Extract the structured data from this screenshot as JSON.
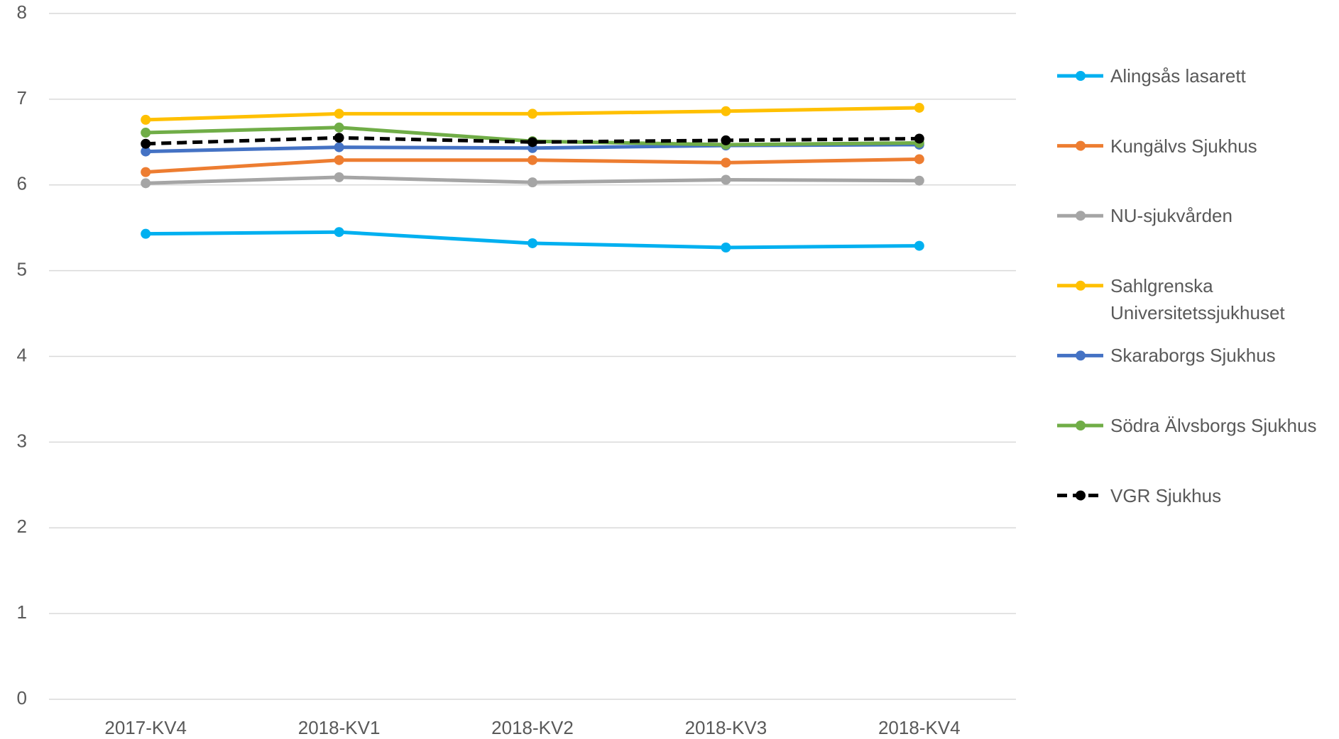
{
  "chart_data": {
    "type": "line",
    "categories": [
      "2017-KV4",
      "2018-KV1",
      "2018-KV2",
      "2018-KV3",
      "2018-KV4"
    ],
    "series": [
      {
        "name": "Alingsås lasarett",
        "color": "#00b0f0",
        "values": [
          5.43,
          5.45,
          5.32,
          5.27,
          5.29
        ]
      },
      {
        "name": "Kungälvs Sjukhus",
        "color": "#ed7d31",
        "values": [
          6.15,
          6.29,
          6.29,
          6.26,
          6.3
        ]
      },
      {
        "name": "NU-sjukvården",
        "color": "#a5a5a5",
        "values": [
          6.02,
          6.09,
          6.03,
          6.06,
          6.05
        ]
      },
      {
        "name": "Sahlgrenska Universitetssjukhuset",
        "color": "#ffc000",
        "values": [
          6.76,
          6.83,
          6.83,
          6.86,
          6.9
        ]
      },
      {
        "name": "Skaraborgs Sjukhus",
        "color": "#4472c4",
        "values": [
          6.39,
          6.44,
          6.43,
          6.46,
          6.47
        ]
      },
      {
        "name": "Södra Älvsborgs Sjukhus",
        "color": "#70ad47",
        "values": [
          6.61,
          6.67,
          6.51,
          6.47,
          6.49
        ]
      },
      {
        "name": "VGR Sjukhus",
        "color": "#000000",
        "dashed": true,
        "values": [
          6.48,
          6.55,
          6.5,
          6.52,
          6.54
        ]
      }
    ],
    "ylim": [
      0,
      8
    ],
    "yticks": [
      0,
      1,
      2,
      3,
      4,
      5,
      6,
      7,
      8
    ],
    "grid": true,
    "legend": "right"
  }
}
